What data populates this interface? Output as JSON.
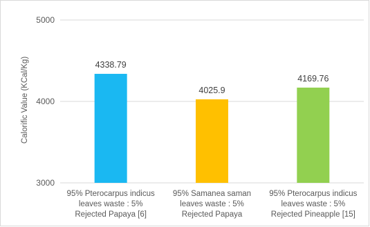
{
  "chart_data": {
    "type": "bar",
    "title": "",
    "xlabel": "",
    "ylabel": "Calorific Value (KCal/Kg)",
    "ylim": [
      3000,
      5000
    ],
    "yticks": [
      3000,
      4000,
      5000
    ],
    "grid": true,
    "legend": "none",
    "categories": [
      [
        "95% Pterocarpus indicus",
        "leaves waste : 5%",
        "Rejected Papaya [6]"
      ],
      [
        "95% Samanea saman",
        "leaves waste : 5%",
        "Rejected Papaya"
      ],
      [
        "95% Pterocarpus indicus",
        "leaves waste : 5%",
        "Rejected Pineapple [15]"
      ]
    ],
    "values": [
      4338.79,
      4025.9,
      4169.76
    ],
    "value_labels": [
      "4338.79",
      "4025.9",
      "4169.76"
    ],
    "colors": [
      "#1ab8f2",
      "#ffc000",
      "#92d050"
    ]
  }
}
